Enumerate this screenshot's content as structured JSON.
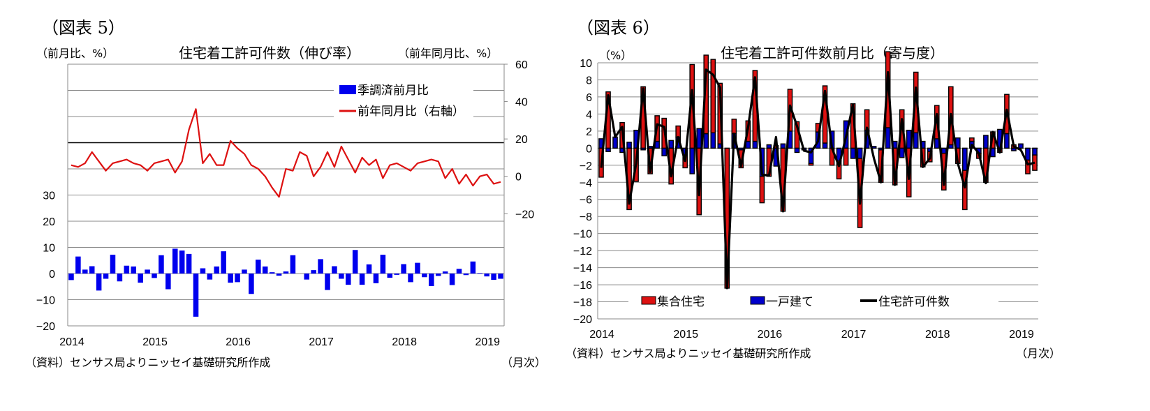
{
  "figures": [
    {
      "label": "（図表 5）"
    },
    {
      "label": "（図表 6）"
    }
  ],
  "chart_data": [
    {
      "type": "bar",
      "title": "住宅着工許可件数（伸び率）",
      "left_unit": "（前月比、%）",
      "right_unit": "（前年同月比、%）",
      "xlabel": "（月次）",
      "source": "（資料）センサス局よりニッセイ基礎研究所作成",
      "x_ticks": [
        "2014",
        "2015",
        "2016",
        "2017",
        "2018",
        "2019"
      ],
      "left_ticks": [
        "30",
        "20",
        "10",
        "0",
        "−10",
        "−20"
      ],
      "right_ticks": [
        "60",
        "40",
        "20",
        "0",
        "−20"
      ],
      "ylim_left": [
        -20,
        80
      ],
      "ylim_right": [
        -80,
        60
      ],
      "grid": true,
      "legend_position": "top-right",
      "start": "2014-01",
      "series": [
        {
          "name": "季調済前月比",
          "type": "bar",
          "axis": "left",
          "color": "#0000ee",
          "values": [
            -2.5,
            6.5,
            1.5,
            2.8,
            -6.5,
            -2,
            7.2,
            -3,
            3,
            2.7,
            -3.5,
            1.5,
            -1.7,
            7,
            -6,
            9.5,
            8.8,
            7.5,
            -16.5,
            2,
            -2.3,
            2.7,
            8.5,
            -3.5,
            -3.3,
            1.5,
            -7.8,
            5.3,
            2.7,
            0.5,
            -0.8,
            0.8,
            7,
            0,
            -2.3,
            1.3,
            5.5,
            -6.3,
            2.8,
            -2,
            -4.3,
            9,
            -4.3,
            3.5,
            -3.7,
            7.2,
            -1.6,
            -0.5,
            3.6,
            -3.3,
            4.1,
            -1.4,
            -4.8,
            -0.9,
            0.8,
            -4.4,
            1.8,
            -0.6,
            4.6,
            0.2,
            -1.1,
            -2.4,
            -2.0
          ]
        },
        {
          "name": "前年同月比（右軸）",
          "type": "line",
          "axis": "right",
          "color": "#dd1111",
          "values": [
            6,
            5,
            7,
            13,
            8,
            3,
            7,
            8,
            9,
            7,
            6,
            3,
            7,
            8,
            9,
            2,
            8,
            25,
            36,
            7,
            12,
            6,
            6,
            19,
            15,
            12,
            6,
            4,
            0,
            -6,
            -11,
            4,
            3,
            13,
            11,
            0,
            5,
            13,
            5,
            16,
            9,
            2,
            10,
            6,
            9,
            -1,
            6,
            7,
            5,
            3,
            7,
            8,
            9,
            8,
            -1,
            4,
            -4,
            1,
            -5,
            0,
            1,
            -4,
            -3
          ]
        }
      ]
    },
    {
      "type": "bar",
      "stacked": true,
      "title": "住宅着工許可件数前月比（寄与度）",
      "unit": "（%）",
      "xlabel": "（月次）",
      "source": "（資料）センサス局よりニッセイ基礎研究所作成",
      "x_ticks": [
        "2014",
        "2015",
        "2016",
        "2017",
        "2018",
        "2019"
      ],
      "y_ticks": [
        "10",
        "8",
        "6",
        "4",
        "2",
        "0",
        "−2",
        "−4",
        "−6",
        "−8",
        "−10",
        "−12",
        "−14",
        "−16",
        "−18",
        "−20"
      ],
      "ylim": [
        -20,
        10
      ],
      "grid": true,
      "legend_position": "bottom",
      "start": "2014-01",
      "series": [
        {
          "name": "集合住宅",
          "type": "bar",
          "color": "#dd1111",
          "values": [
            -3.4,
            6.6,
            0,
            3,
            -7.2,
            -3.9,
            7.2,
            -3,
            3,
            3.5,
            -4.2,
            1.3,
            -1.5,
            9.8,
            -7.8,
            9.2,
            8.6,
            7.1,
            -16.4,
            1.7,
            -2.1,
            2.4,
            8.3,
            -3.1,
            -3.3,
            0.3,
            -7.4,
            4.9,
            3.1,
            0,
            -0.2,
            1,
            6.7,
            -2,
            -2.1,
            -2,
            5.2,
            -8.1,
            2.4,
            0,
            -3.8,
            8.9,
            -4.3,
            4.5,
            -5.7,
            7.1,
            -2.2,
            -1.2,
            3.9,
            -4.3,
            6.8,
            -1.8,
            -4.6,
            0.4,
            -0.6,
            -4,
            1.9,
            -0.5,
            4.6,
            0.4,
            0,
            -1.6,
            -1.8
          ]
        },
        {
          "name": "一戸建て",
          "type": "bar",
          "color": "#0000cc",
          "values": [
            1.1,
            -0.4,
            1.3,
            -0.5,
            0.7,
            2.1,
            -0.2,
            0.2,
            0.8,
            -0.9,
            0.9,
            1.3,
            -0.8,
            -3,
            2.3,
            1.7,
            1.8,
            0.5,
            0,
            1.7,
            -0.2,
            0.8,
            0.8,
            -3.3,
            0.4,
            -2.1,
            0.5,
            2,
            -0.5,
            -0.2,
            -1.8,
            1.9,
            0.6,
            2,
            -1.5,
            3.2,
            -1.2,
            -1.2,
            2.1,
            0.2,
            -0.2,
            2.4,
            0.8,
            -1.1,
            2.1,
            1.8,
            0.8,
            -0.4,
            1.1,
            -0.6,
            0.4,
            1.2,
            -2.6,
            0.8,
            -0.6,
            1.5,
            -1,
            2.2,
            1.7,
            -0.3,
            0.5,
            -1.4,
            -0.8
          ]
        },
        {
          "name": "住宅許可件数",
          "type": "line",
          "color": "#000000",
          "values": [
            -2.3,
            6.2,
            1.3,
            2.5,
            -6.5,
            -1.8,
            7.0,
            -2.8,
            2.8,
            2.5,
            -3.3,
            1.3,
            -1.5,
            6.8,
            -5.5,
            9.2,
            8.6,
            7.1,
            -16.4,
            1.7,
            -2.1,
            2.4,
            8.3,
            -3.1,
            -3.2,
            1.3,
            -7.4,
            5.0,
            2.6,
            -0.3,
            -0.5,
            0.8,
            6.7,
            0,
            -2.1,
            1.3,
            5.1,
            -6.5,
            2.4,
            -1.2,
            -4,
            8.9,
            -4.3,
            3.4,
            -3.6,
            7.1,
            -2.2,
            -1.2,
            4.0,
            -4.3,
            4.0,
            -1.8,
            -4.6,
            0.4,
            -0.6,
            -4.1,
            1.9,
            -0.5,
            4.5,
            0.2,
            -0.2,
            -1.9,
            -1.7
          ]
        }
      ]
    }
  ]
}
